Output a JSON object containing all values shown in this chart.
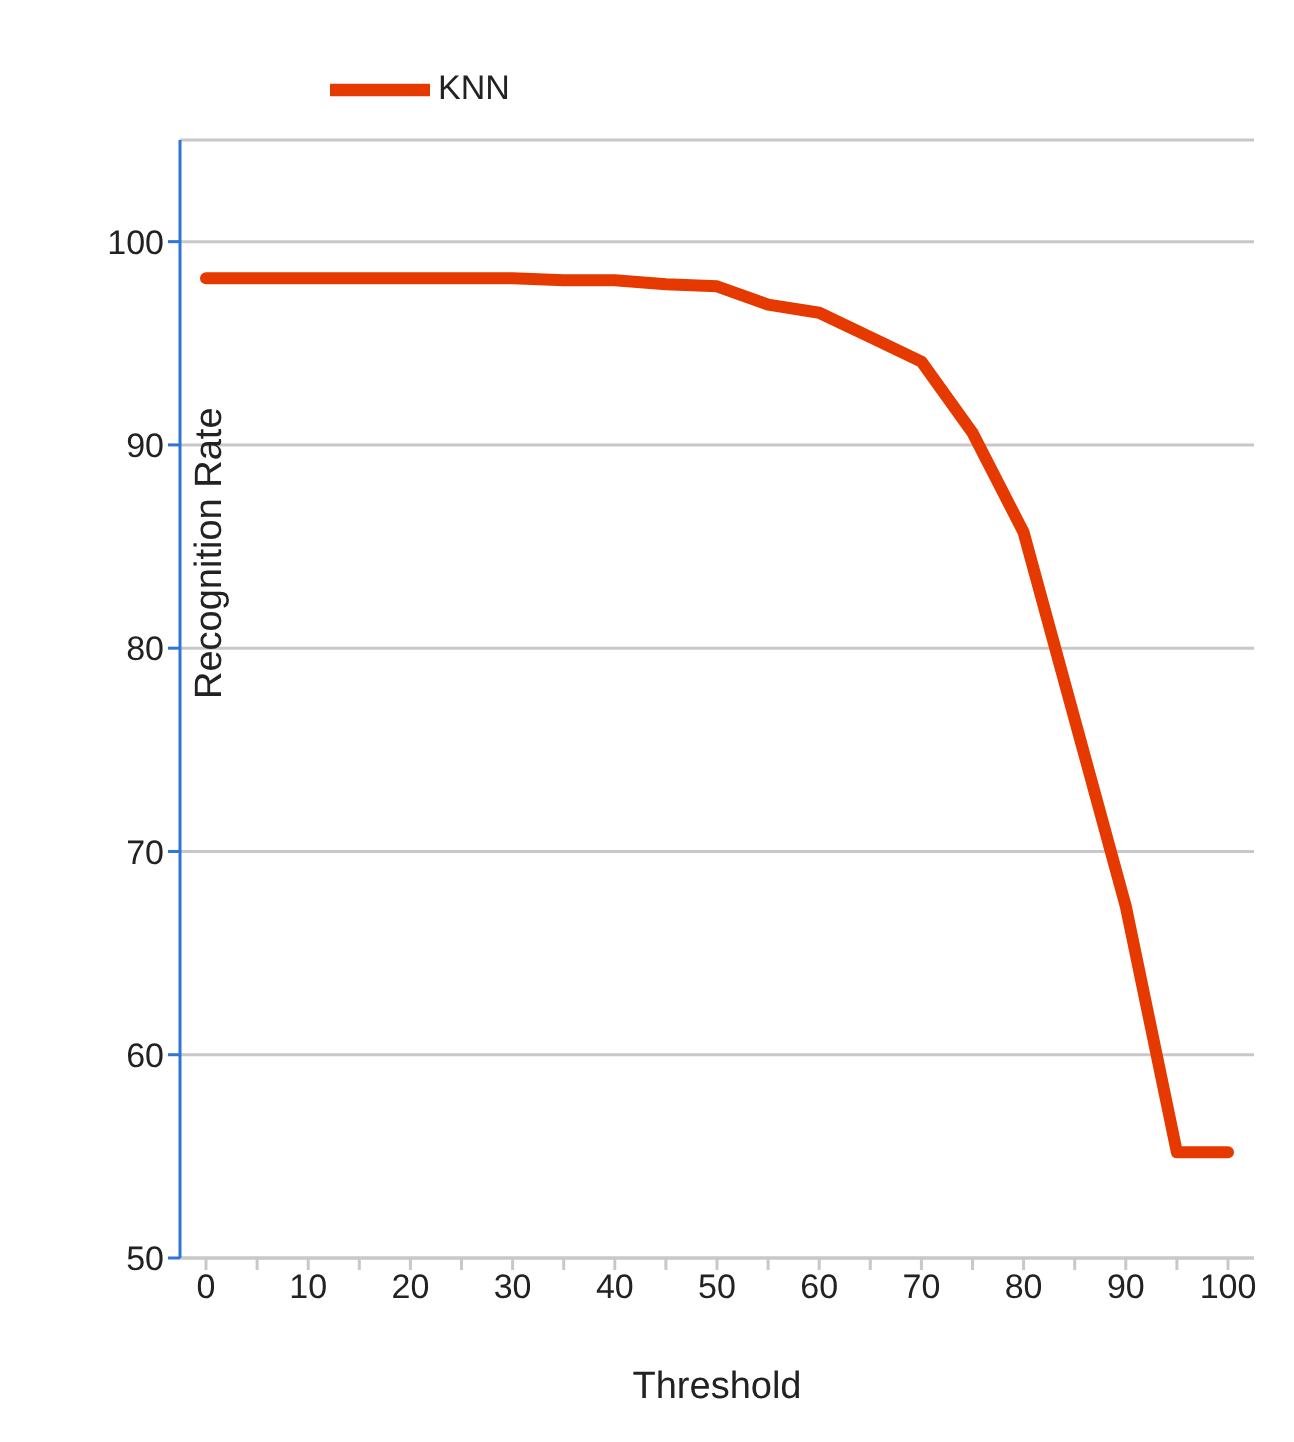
{
  "chart_data": {
    "type": "line",
    "xlabel": "Threshold",
    "ylabel": "Recognition Rate",
    "categories": [
      "0",
      null,
      "10",
      null,
      "20",
      null,
      "30",
      null,
      "40",
      null,
      "50",
      null,
      "60",
      null,
      "70",
      null,
      "80",
      null,
      "90",
      null,
      "100"
    ],
    "series": [
      {
        "name": "KNN",
        "color": "#e63900",
        "values": [
          98.2,
          98.2,
          98.2,
          98.2,
          98.2,
          98.2,
          98.2,
          98.1,
          98.1,
          97.9,
          97.8,
          96.9,
          96.5,
          95.3,
          94.1,
          90.6,
          85.7,
          76.5,
          67.3,
          55.2,
          55.2
        ]
      }
    ],
    "ylim": [
      50,
      105
    ],
    "yticks": [
      50,
      60,
      70,
      80,
      90,
      100
    ],
    "grid": "y",
    "legend": "top left",
    "marker": "none",
    "line_style": "solid"
  }
}
